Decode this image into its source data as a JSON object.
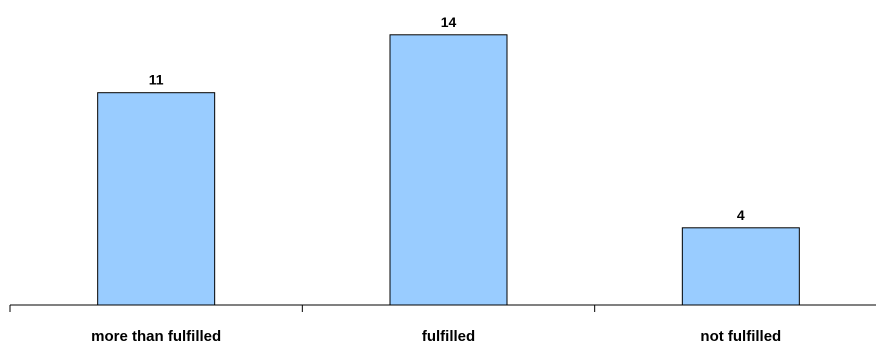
{
  "chart_data": {
    "type": "bar",
    "categories": [
      "more than fulfilled",
      "fulfilled",
      "not fulfilled"
    ],
    "values": [
      11,
      14,
      4
    ],
    "data_labels": [
      "11",
      "14",
      "4"
    ],
    "title": "",
    "xlabel": "",
    "ylabel": "",
    "ylim": [
      0,
      16
    ],
    "grid": false,
    "legend": "none"
  },
  "colors": {
    "bar_fill": "#99CCFF",
    "bar_stroke": "#000000",
    "axis": "#000000",
    "background": "#FFFFFF"
  }
}
